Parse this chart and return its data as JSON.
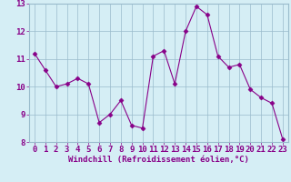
{
  "x": [
    0,
    1,
    2,
    3,
    4,
    5,
    6,
    7,
    8,
    9,
    10,
    11,
    12,
    13,
    14,
    15,
    16,
    17,
    18,
    19,
    20,
    21,
    22,
    23
  ],
  "y": [
    11.2,
    10.6,
    10.0,
    10.1,
    10.3,
    10.1,
    8.7,
    9.0,
    9.5,
    8.6,
    8.5,
    11.1,
    11.3,
    10.1,
    12.0,
    12.9,
    12.6,
    11.1,
    10.7,
    10.8,
    9.9,
    9.6,
    9.4,
    8.1
  ],
  "line_color": "#880088",
  "marker_color": "#880088",
  "bg_color": "#d5eef5",
  "grid_color": "#99bbcc",
  "xlabel": "Windchill (Refroidissement éolien,°C)",
  "ylim": [
    8,
    13
  ],
  "xlim_min": -0.5,
  "xlim_max": 23.5,
  "yticks": [
    8,
    9,
    10,
    11,
    12,
    13
  ],
  "xticks": [
    0,
    1,
    2,
    3,
    4,
    5,
    6,
    7,
    8,
    9,
    10,
    11,
    12,
    13,
    14,
    15,
    16,
    17,
    18,
    19,
    20,
    21,
    22,
    23
  ],
  "label_color": "#880088",
  "font_size_xlabel": 6.5,
  "font_size_ticks": 6.5
}
